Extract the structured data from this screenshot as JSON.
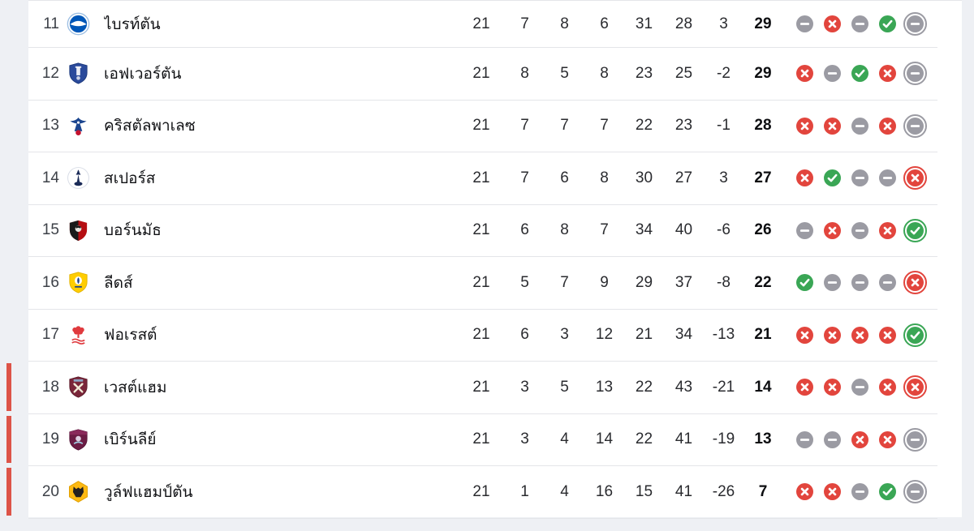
{
  "colors": {
    "win": "#3aa655",
    "loss": "#e2453d",
    "draw": "#9b9ba3",
    "relegation_bar": "#dd5347",
    "page_background": "#eef0f4",
    "panel_background": "#ffffff",
    "divider": "#e4e5e9"
  },
  "table": {
    "rows": [
      {
        "position": "11",
        "team": "ไบรท์ตัน",
        "badge": "brighton-badge",
        "badge_colors": {
          "primary": "#0057b8",
          "secondary": "#ffffff",
          "tertiary": "#9dbfe3"
        },
        "played": "21",
        "won": "7",
        "drawn": "8",
        "lost": "6",
        "goals_for": "31",
        "goals_against": "28",
        "goal_diff": "3",
        "points": "29",
        "form": [
          "D",
          "L",
          "D",
          "W",
          "D"
        ],
        "relegation": false
      },
      {
        "position": "12",
        "team": "เอฟเวอร์ตัน",
        "badge": "everton-badge",
        "badge_colors": {
          "primary": "#2a4a9b",
          "secondary": "#ffffff",
          "tertiary": "#1d3a7d"
        },
        "played": "21",
        "won": "8",
        "drawn": "5",
        "lost": "8",
        "goals_for": "23",
        "goals_against": "25",
        "goal_diff": "-2",
        "points": "29",
        "form": [
          "L",
          "D",
          "W",
          "L",
          "D"
        ],
        "relegation": false
      },
      {
        "position": "13",
        "team": "คริสตัลพาเลซ",
        "badge": "crystal-palace-badge",
        "badge_colors": {
          "primary": "#1b458f",
          "secondary": "#c4122e",
          "tertiary": "#ffffff"
        },
        "played": "21",
        "won": "7",
        "drawn": "7",
        "lost": "7",
        "goals_for": "22",
        "goals_against": "23",
        "goal_diff": "-1",
        "points": "28",
        "form": [
          "L",
          "L",
          "D",
          "L",
          "D"
        ],
        "relegation": false
      },
      {
        "position": "14",
        "team": "สเปอร์ส",
        "badge": "spurs-badge",
        "badge_colors": {
          "primary": "#1a2a57",
          "secondary": "#ffffff",
          "tertiary": "#d8dce6"
        },
        "played": "21",
        "won": "7",
        "drawn": "6",
        "lost": "8",
        "goals_for": "30",
        "goals_against": "27",
        "goal_diff": "3",
        "points": "27",
        "form": [
          "L",
          "W",
          "D",
          "D",
          "L"
        ],
        "relegation": false
      },
      {
        "position": "15",
        "team": "บอร์นมัธ",
        "badge": "bournemouth-badge",
        "badge_colors": {
          "primary": "#b50e12",
          "secondary": "#1a1a1a",
          "tertiary": "#e8e6e0"
        },
        "played": "21",
        "won": "6",
        "drawn": "8",
        "lost": "7",
        "goals_for": "34",
        "goals_against": "40",
        "goal_diff": "-6",
        "points": "26",
        "form": [
          "D",
          "L",
          "D",
          "L",
          "W"
        ],
        "relegation": false
      },
      {
        "position": "16",
        "team": "ลีดส์",
        "badge": "leeds-badge",
        "badge_colors": {
          "primary": "#ffcd00",
          "secondary": "#1d428a",
          "tertiary": "#ffffff"
        },
        "played": "21",
        "won": "5",
        "drawn": "7",
        "lost": "9",
        "goals_for": "29",
        "goals_against": "37",
        "goal_diff": "-8",
        "points": "22",
        "form": [
          "W",
          "D",
          "D",
          "D",
          "L"
        ],
        "relegation": false
      },
      {
        "position": "17",
        "team": "ฟอเรสต์",
        "badge": "forest-badge",
        "badge_colors": {
          "primary": "#e03a3e",
          "secondary": "#ffffff",
          "tertiary": "#e03a3e"
        },
        "played": "21",
        "won": "6",
        "drawn": "3",
        "lost": "12",
        "goals_for": "21",
        "goals_against": "34",
        "goal_diff": "-13",
        "points": "21",
        "form": [
          "L",
          "L",
          "L",
          "L",
          "W"
        ],
        "relegation": false
      },
      {
        "position": "18",
        "team": "เวสต์แฮม",
        "badge": "west-ham-badge",
        "badge_colors": {
          "primary": "#7a263a",
          "secondary": "#f0ead6",
          "tertiary": "#8da6c3"
        },
        "played": "21",
        "won": "3",
        "drawn": "5",
        "lost": "13",
        "goals_for": "22",
        "goals_against": "43",
        "goal_diff": "-21",
        "points": "14",
        "form": [
          "L",
          "L",
          "D",
          "L",
          "L"
        ],
        "relegation": true
      },
      {
        "position": "19",
        "team": "เบิร์นลีย์",
        "badge": "burnley-badge",
        "badge_colors": {
          "primary": "#6c1d45",
          "secondary": "#e9dff0",
          "tertiary": "#9ecbe0"
        },
        "played": "21",
        "won": "3",
        "drawn": "4",
        "lost": "14",
        "goals_for": "22",
        "goals_against": "41",
        "goal_diff": "-19",
        "points": "13",
        "form": [
          "D",
          "D",
          "L",
          "L",
          "D"
        ],
        "relegation": true
      },
      {
        "position": "20",
        "team": "วูล์ฟแฮมป์ตัน",
        "badge": "wolves-badge",
        "badge_colors": {
          "primary": "#fdb913",
          "secondary": "#231f20",
          "tertiary": "#e0a000"
        },
        "played": "21",
        "won": "1",
        "drawn": "4",
        "lost": "16",
        "goals_for": "15",
        "goals_against": "41",
        "goal_diff": "-26",
        "points": "7",
        "form": [
          "L",
          "L",
          "D",
          "W",
          "D"
        ],
        "relegation": true
      }
    ]
  }
}
